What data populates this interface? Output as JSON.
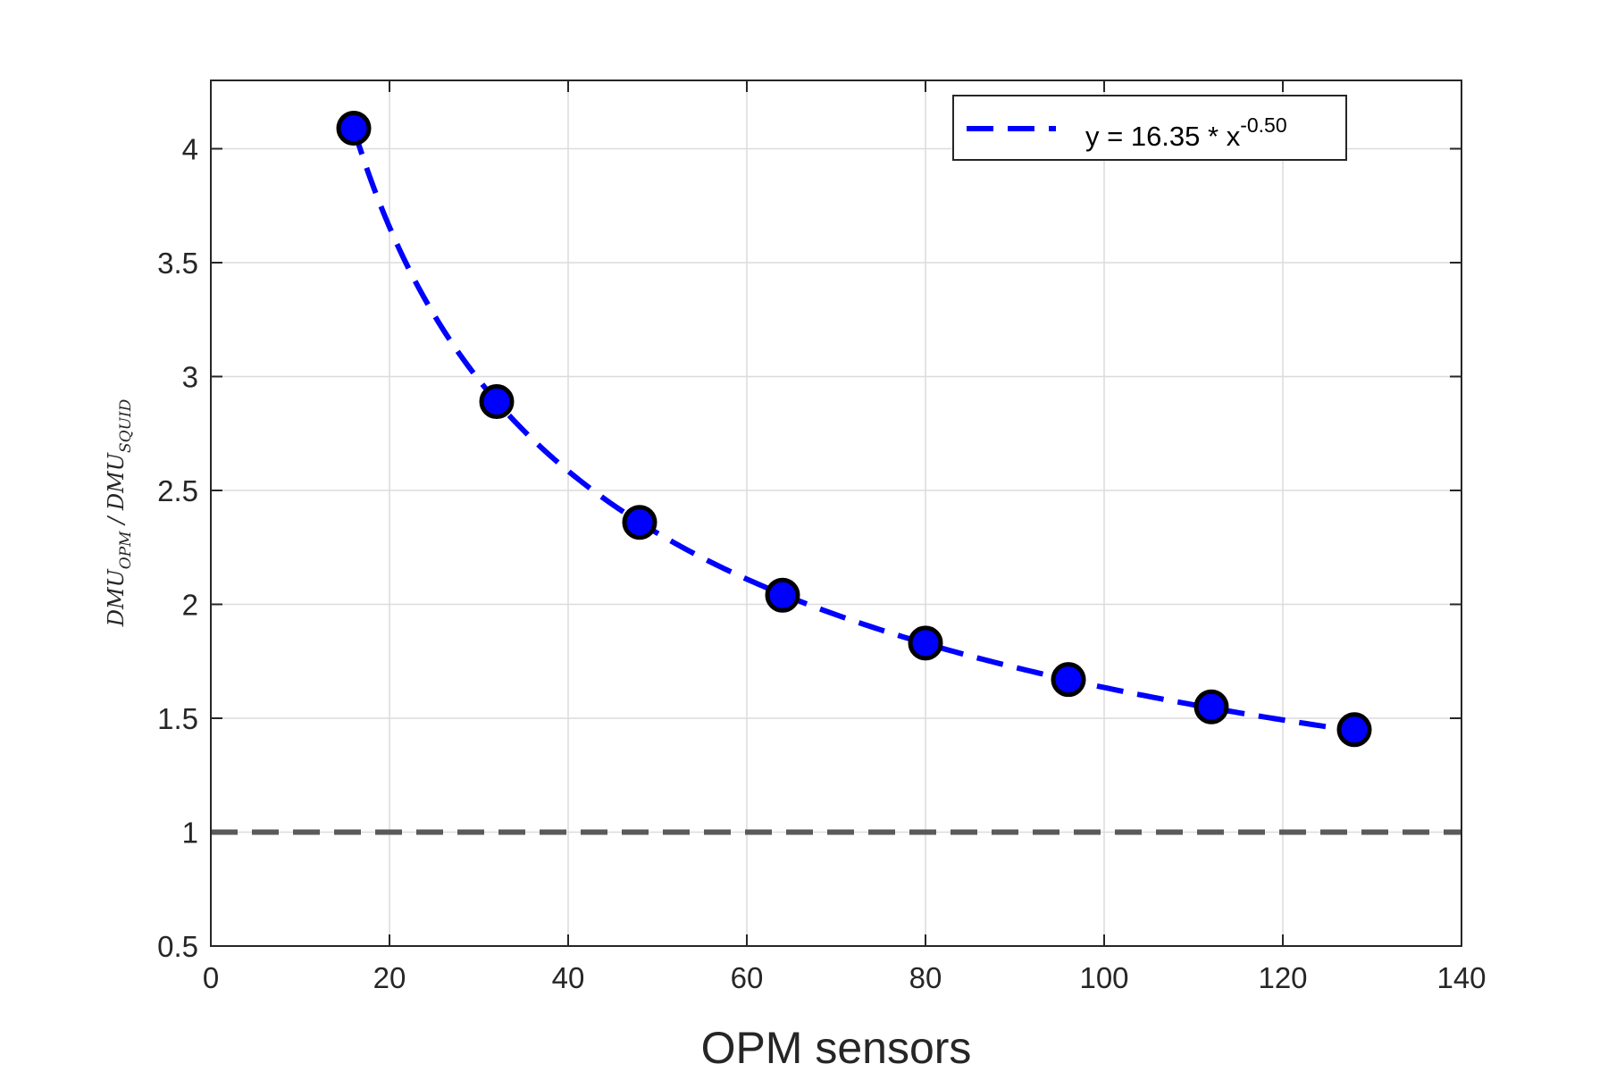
{
  "chart_data": {
    "type": "scatter",
    "title": "",
    "xlabel": "OPM sensors",
    "ylabel": {
      "numerator_main": "DMU",
      "numerator_sub": "OPM",
      "separator": " / ",
      "denominator_main": "DMU",
      "denominator_sub": "SQUID"
    },
    "xlim": [
      0,
      140
    ],
    "ylim": [
      0.5,
      4.3
    ],
    "xticks": [
      0,
      20,
      40,
      60,
      80,
      100,
      120,
      140
    ],
    "xtick_labels": [
      "0",
      "20",
      "40",
      "60",
      "80",
      "100",
      "120",
      "140"
    ],
    "yticks": [
      0.5,
      1,
      1.5,
      2,
      2.5,
      3,
      3.5,
      4
    ],
    "ytick_labels": [
      "0.5",
      "1",
      "1.5",
      "2",
      "2.5",
      "3",
      "3.5",
      "4"
    ],
    "grid": true,
    "legend_position": "top-right",
    "series": [
      {
        "x": [
          16,
          32,
          48,
          64,
          80,
          96,
          112,
          128
        ],
        "y": [
          4.09,
          2.89,
          2.36,
          2.04,
          1.83,
          1.67,
          1.55,
          1.45
        ],
        "color": "#0000ff",
        "edge_color": "#000000",
        "style": "markers"
      }
    ],
    "fit": {
      "legend_main": "y = 16.35 * x",
      "legend_exponent": "-0.50",
      "a": 16.35,
      "b": -0.5,
      "x_range": [
        16,
        128
      ],
      "color": "#0000ff",
      "style": "dashed"
    },
    "reference_line": {
      "y": 1,
      "color": "#5a5a5a",
      "style": "dashed"
    }
  }
}
